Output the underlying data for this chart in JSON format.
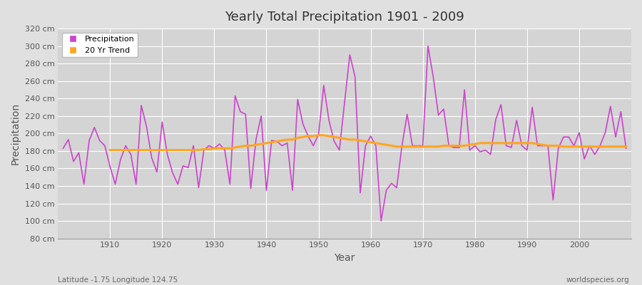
{
  "title": "Yearly Total Precipitation 1901 - 2009",
  "xlabel": "Year",
  "ylabel": "Precipitation",
  "footnote_left": "Latitude -1.75 Longitude 124.75",
  "footnote_right": "worldspecies.org",
  "line_color": "#CC44CC",
  "trend_color": "#FFA520",
  "bg_color": "#E0E0E0",
  "plot_bg_color": "#D4D4D4",
  "grid_color": "#FFFFFF",
  "ylim": [
    80,
    320
  ],
  "ytick_step": 20,
  "years": [
    1901,
    1902,
    1903,
    1904,
    1905,
    1906,
    1907,
    1908,
    1909,
    1910,
    1911,
    1912,
    1913,
    1914,
    1915,
    1916,
    1917,
    1918,
    1919,
    1920,
    1921,
    1922,
    1923,
    1924,
    1925,
    1926,
    1927,
    1928,
    1929,
    1930,
    1931,
    1932,
    1933,
    1934,
    1935,
    1936,
    1937,
    1938,
    1939,
    1940,
    1941,
    1942,
    1943,
    1944,
    1945,
    1946,
    1947,
    1948,
    1949,
    1950,
    1951,
    1952,
    1953,
    1954,
    1955,
    1956,
    1957,
    1958,
    1959,
    1960,
    1961,
    1962,
    1963,
    1964,
    1965,
    1966,
    1967,
    1968,
    1969,
    1970,
    1971,
    1972,
    1973,
    1974,
    1975,
    1976,
    1977,
    1978,
    1979,
    1980,
    1981,
    1982,
    1983,
    1984,
    1985,
    1986,
    1987,
    1988,
    1989,
    1990,
    1991,
    1992,
    1993,
    1994,
    1995,
    1996,
    1997,
    1998,
    1999,
    2000,
    2001,
    2002,
    2003,
    2004,
    2005,
    2006,
    2007,
    2008,
    2009
  ],
  "precipitation": [
    183,
    193,
    168,
    178,
    142,
    192,
    207,
    192,
    186,
    162,
    142,
    170,
    186,
    176,
    142,
    232,
    208,
    172,
    156,
    213,
    176,
    155,
    142,
    163,
    161,
    186,
    138,
    181,
    186,
    183,
    188,
    181,
    142,
    243,
    225,
    222,
    137,
    193,
    220,
    135,
    192,
    191,
    186,
    189,
    135,
    239,
    211,
    197,
    186,
    199,
    255,
    215,
    191,
    181,
    236,
    290,
    265,
    132,
    186,
    197,
    186,
    100,
    135,
    143,
    138,
    186,
    222,
    186,
    186,
    186,
    300,
    265,
    221,
    228,
    186,
    184,
    184,
    250,
    181,
    186,
    179,
    181,
    176,
    216,
    233,
    186,
    184,
    215,
    186,
    181,
    230,
    186,
    186,
    186,
    124,
    183,
    196,
    196,
    186,
    201,
    171,
    186,
    176,
    186,
    201,
    231,
    196,
    225,
    183
  ],
  "trend": [
    null,
    null,
    null,
    null,
    null,
    null,
    null,
    null,
    null,
    181,
    181,
    181,
    181,
    181,
    181,
    181,
    181,
    181,
    181,
    181,
    181,
    181,
    181,
    181,
    181,
    181,
    181,
    182,
    182,
    183,
    183,
    183,
    183,
    184,
    185,
    186,
    186,
    187,
    188,
    189,
    190,
    191,
    192,
    193,
    193,
    195,
    196,
    197,
    197,
    198,
    198,
    197,
    196,
    195,
    194,
    193,
    193,
    192,
    191,
    190,
    189,
    188,
    187,
    186,
    185,
    185,
    185,
    185,
    185,
    185,
    185,
    185,
    185,
    186,
    186,
    186,
    186,
    186,
    187,
    188,
    189,
    189,
    189,
    189,
    189,
    189,
    189,
    189,
    189,
    189,
    189,
    188,
    187,
    186,
    186,
    186,
    185,
    185,
    185,
    185,
    185,
    185,
    185,
    185,
    185,
    185,
    185,
    185,
    185
  ]
}
